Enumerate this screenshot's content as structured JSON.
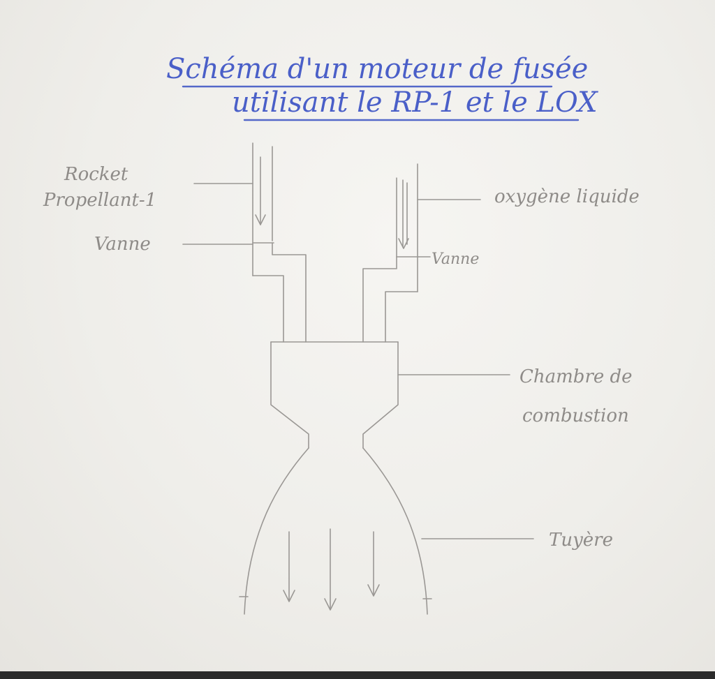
{
  "title": {
    "line1": "Schéma d'un moteur de fusée",
    "line2": "utilisant le RP-1 et le LOX"
  },
  "labels": {
    "rp1_line1": "Rocket",
    "rp1_line2": "Propellant-1",
    "vanne_left": "Vanne",
    "oxygen": "oxygène liquide",
    "vanne_right": "Vanne",
    "chamber_line1": "Chambre de",
    "chamber_line2": "combustion",
    "nozzle": "Tuyère"
  },
  "colors": {
    "title_ink": "#4a5fc8",
    "pencil": "#9a9794",
    "paper": "#f3f2ee"
  }
}
